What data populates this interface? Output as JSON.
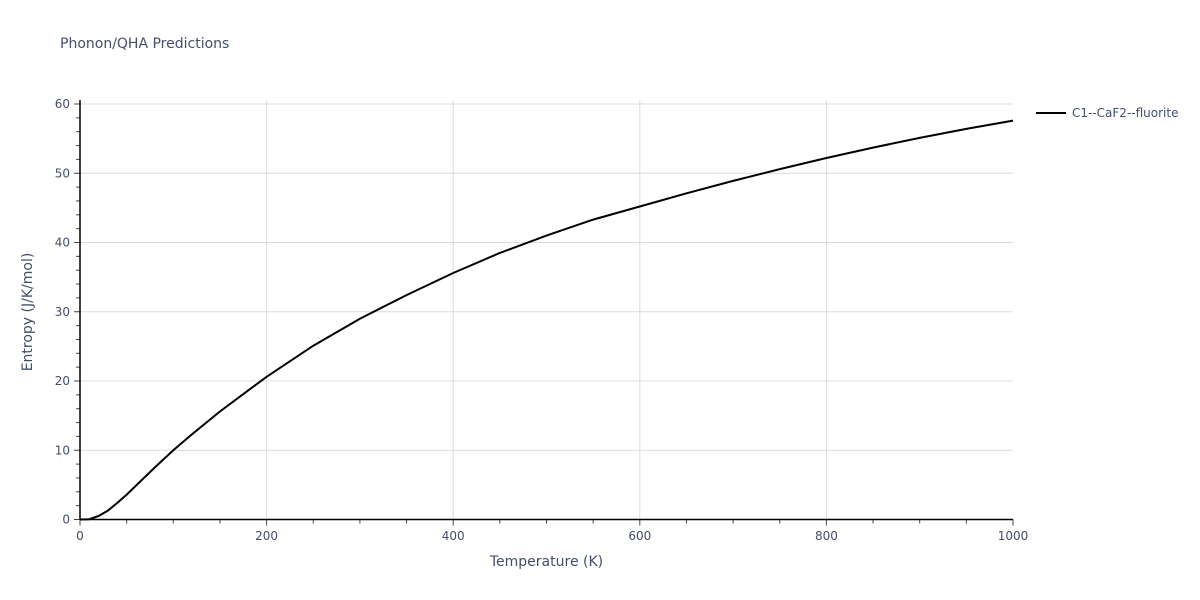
{
  "title": "Phonon/QHA Predictions",
  "legend": {
    "label": "C1--CaF2--fluorite",
    "color": "#000000"
  },
  "axes": {
    "xlabel": "Temperature (K)",
    "ylabel": "Entropy (J/K/mol)",
    "xticks": [
      "0",
      "200",
      "400",
      "600",
      "800",
      "1000"
    ],
    "yticks": [
      "0",
      "10",
      "20",
      "30",
      "40",
      "50",
      "60"
    ]
  },
  "chart_data": {
    "type": "line",
    "title": "Phonon/QHA Predictions",
    "xlabel": "Temperature (K)",
    "ylabel": "Entropy (J/K/mol)",
    "xlim": [
      0,
      1000
    ],
    "ylim": [
      0,
      60
    ],
    "grid": true,
    "legend_position": "right-top",
    "series": [
      {
        "name": "C1--CaF2--fluorite",
        "color": "#000000",
        "x": [
          0,
          10,
          20,
          30,
          40,
          50,
          60,
          80,
          100,
          120,
          150,
          200,
          250,
          300,
          350,
          400,
          450,
          500,
          550,
          600,
          650,
          700,
          750,
          800,
          850,
          900,
          950,
          1000
        ],
        "y": [
          0,
          0.05,
          0.5,
          1.3,
          2.4,
          3.6,
          4.9,
          7.5,
          10.0,
          12.3,
          15.6,
          20.6,
          25.1,
          29.0,
          32.4,
          35.6,
          38.5,
          41.0,
          43.3,
          45.2,
          47.1,
          48.9,
          50.6,
          52.2,
          53.7,
          55.1,
          56.4,
          57.6
        ]
      }
    ]
  }
}
